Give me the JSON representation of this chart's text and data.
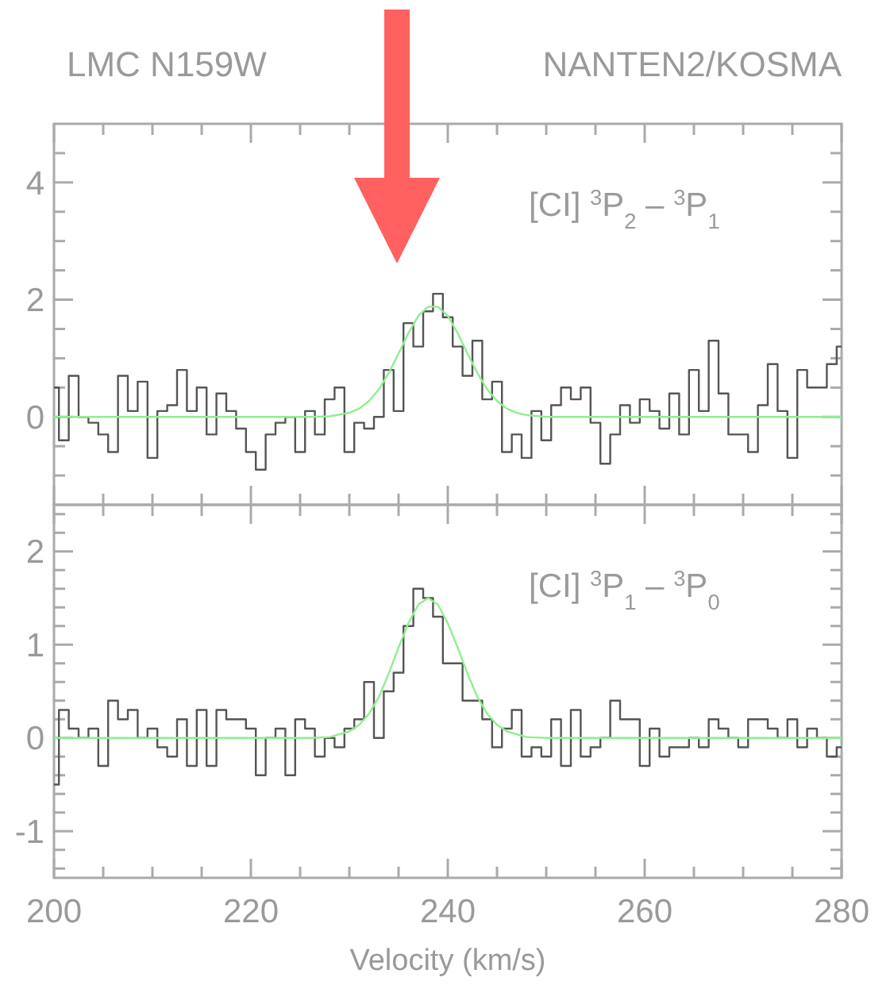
{
  "chart_data": [
    {
      "type": "step",
      "title": "LMC N159W",
      "subtitle": "NANTEN2/KOSMA",
      "annotations": [
        "[CI] $^{3}$P$_{2}$ – $^{3}$P$_{1}$"
      ],
      "tick_labels": "y",
      "xlim": [
        200,
        280
      ],
      "xticks": [
        {
          "value": 200,
          "label": null
        },
        {
          "value": 205,
          "label": null
        },
        {
          "value": 210,
          "label": null
        },
        {
          "value": 215,
          "label": null
        },
        {
          "value": 220,
          "label": null
        },
        {
          "value": 225,
          "label": null
        },
        {
          "value": 230,
          "label": null
        },
        {
          "value": 235,
          "label": null
        },
        {
          "value": 240,
          "label": null
        },
        {
          "value": 245,
          "label": null
        },
        {
          "value": 250,
          "label": null
        },
        {
          "value": 255,
          "label": null
        },
        {
          "value": 260,
          "label": null
        },
        {
          "value": 265,
          "label": null
        },
        {
          "value": 270,
          "label": null
        },
        {
          "value": 275,
          "label": null
        },
        {
          "value": 280,
          "label": null
        }
      ],
      "ylim": [
        -1.5,
        5
      ],
      "yticks": [
        {
          "value": -1,
          "label": null
        },
        {
          "value": -0.5,
          "label": null
        },
        0,
        {
          "value": 0.5,
          "label": null
        },
        {
          "value": 1,
          "label": null
        },
        {
          "value": 1.5,
          "label": null
        },
        2,
        {
          "value": 2.5,
          "label": null
        },
        {
          "value": 3,
          "label": null
        },
        {
          "value": 3.5,
          "label": null
        },
        4,
        {
          "value": 4.5,
          "label": null
        }
      ],
      "x": [
        200,
        201,
        202,
        203,
        204,
        205,
        206,
        207,
        208,
        209,
        210,
        211,
        212,
        213,
        214,
        215,
        216,
        217,
        218,
        219,
        220,
        221,
        222,
        223,
        224,
        225,
        226,
        227,
        228,
        229,
        230,
        231,
        232,
        233,
        234,
        235,
        236,
        237,
        238,
        239,
        240,
        241,
        242,
        243,
        244,
        245,
        246,
        247,
        248,
        249,
        250,
        251,
        252,
        253,
        254,
        255,
        256,
        257,
        258,
        259,
        260,
        261,
        262,
        263,
        264,
        265,
        266,
        267,
        268,
        269,
        270,
        271,
        272,
        273,
        274,
        275,
        276,
        277,
        278,
        279,
        280
      ],
      "series": [
        {
          "color": "#555555",
          "values": [
            0.5,
            -0.4,
            0.7,
            0.0,
            -0.1,
            -0.3,
            -0.6,
            0.7,
            0.1,
            0.6,
            -0.7,
            0.1,
            0.2,
            0.8,
            0.1,
            0.5,
            -0.3,
            0.4,
            0.1,
            -0.2,
            -0.6,
            -0.9,
            -0.3,
            -0.1,
            0.0,
            -0.6,
            0.1,
            -0.3,
            0.3,
            0.5,
            -0.6,
            -0.1,
            -0.2,
            0.0,
            0.8,
            0.1,
            1.6,
            1.2,
            1.8,
            2.1,
            1.7,
            1.2,
            0.7,
            1.3,
            0.3,
            0.6,
            -0.6,
            -0.3,
            -0.7,
            0.1,
            -0.4,
            0.2,
            0.5,
            0.3,
            0.5,
            -0.1,
            -0.8,
            -0.3,
            0.2,
            -0.1,
            0.3,
            0.1,
            -0.2,
            0.4,
            -0.3,
            0.8,
            0.1,
            1.3,
            0.4,
            -0.3,
            -0.3,
            -0.6,
            0.2,
            0.9,
            0.1,
            -0.7,
            0.8,
            0.5,
            0.5,
            0.9,
            1.2
          ]
        },
        {
          "type": "line",
          "color": "#90ee90",
          "x": [
            200,
            226,
            228,
            230,
            231,
            232,
            233,
            234,
            235,
            236,
            237,
            238,
            239,
            240,
            241,
            242,
            243,
            244,
            245,
            246,
            247,
            248,
            250,
            280
          ],
          "values": [
            0,
            0,
            0.01,
            0.07,
            0.14,
            0.27,
            0.47,
            0.75,
            1.08,
            1.43,
            1.72,
            1.88,
            1.88,
            1.72,
            1.43,
            1.08,
            0.75,
            0.47,
            0.27,
            0.14,
            0.07,
            0.03,
            0,
            0
          ]
        }
      ]
    },
    {
      "type": "step",
      "annotations": [
        "[CI] $^{3}$P$_{1}$ – $^{3}$P$_{0}$"
      ],
      "xlabel": "Velocity (km/s)",
      "xlim": [
        200,
        280
      ],
      "xticks": [
        200,
        {
          "value": 205,
          "label": null
        },
        {
          "value": 210,
          "label": null
        },
        {
          "value": 215,
          "label": null
        },
        220,
        {
          "value": 225,
          "label": null
        },
        {
          "value": 230,
          "label": null
        },
        {
          "value": 235,
          "label": null
        },
        240,
        {
          "value": 245,
          "label": null
        },
        {
          "value": 250,
          "label": null
        },
        {
          "value": 255,
          "label": null
        },
        260,
        {
          "value": 265,
          "label": null
        },
        {
          "value": 270,
          "label": null
        },
        {
          "value": 275,
          "label": null
        },
        280
      ],
      "ylim": [
        -1.5,
        2.5
      ],
      "yticks": [
        {
          "value": -1.4,
          "label": null
        },
        {
          "value": -1.2,
          "label": null
        },
        -1,
        {
          "value": -0.8,
          "label": null
        },
        {
          "value": -0.6,
          "label": null
        },
        {
          "value": -0.4,
          "label": null
        },
        {
          "value": -0.2,
          "label": null
        },
        0,
        {
          "value": 0.2,
          "label": null
        },
        {
          "value": 0.4,
          "label": null
        },
        {
          "value": 0.6,
          "label": null
        },
        {
          "value": 0.8,
          "label": null
        },
        1,
        {
          "value": 1.2,
          "label": null
        },
        {
          "value": 1.4,
          "label": null
        },
        {
          "value": 1.6,
          "label": null
        },
        {
          "value": 1.8,
          "label": null
        },
        2,
        {
          "value": 2.2,
          "label": null
        },
        {
          "value": 2.4,
          "label": null
        }
      ],
      "x": [
        200,
        201,
        202,
        203,
        204,
        205,
        206,
        207,
        208,
        209,
        210,
        211,
        212,
        213,
        214,
        215,
        216,
        217,
        218,
        219,
        220,
        221,
        222,
        223,
        224,
        225,
        226,
        227,
        228,
        229,
        230,
        231,
        232,
        233,
        234,
        235,
        236,
        237,
        238,
        239,
        240,
        241,
        242,
        243,
        244,
        245,
        246,
        247,
        248,
        249,
        250,
        251,
        252,
        253,
        254,
        255,
        256,
        257,
        258,
        259,
        260,
        261,
        262,
        263,
        264,
        265,
        266,
        267,
        268,
        269,
        270,
        271,
        272,
        273,
        274,
        275,
        276,
        277,
        278,
        279,
        280
      ],
      "series": [
        {
          "color": "#555555",
          "values": [
            -0.5,
            0.3,
            0.1,
            0.0,
            0.1,
            -0.3,
            0.4,
            0.2,
            0.3,
            0.0,
            0.1,
            -0.1,
            -0.2,
            0.2,
            -0.3,
            0.3,
            -0.3,
            0.3,
            0.2,
            0.2,
            0.1,
            -0.4,
            0.0,
            0.1,
            -0.4,
            0.2,
            0.1,
            -0.2,
            0.0,
            -0.1,
            0.1,
            0.2,
            0.6,
            0.0,
            0.5,
            0.7,
            1.2,
            1.6,
            1.5,
            1.3,
            0.8,
            0.8,
            0.4,
            0.4,
            0.2,
            -0.1,
            0.1,
            0.3,
            -0.2,
            -0.1,
            -0.2,
            0.2,
            -0.3,
            0.3,
            -0.2,
            -0.1,
            0.0,
            0.4,
            0.2,
            0.2,
            -0.3,
            0.1,
            -0.2,
            -0.1,
            -0.1,
            0.0,
            -0.1,
            0.2,
            0.1,
            0.0,
            -0.1,
            0.2,
            0.2,
            0.1,
            0.0,
            0.2,
            -0.1,
            0.1,
            0.0,
            -0.2,
            -0.1
          ]
        },
        {
          "type": "line",
          "color": "#90ee90",
          "x": [
            200,
            226,
            228,
            230,
            231,
            232,
            233,
            234,
            235,
            236,
            237,
            238,
            239,
            240,
            241,
            242,
            243,
            244,
            245,
            246,
            248,
            250,
            280
          ],
          "values": [
            0,
            0,
            0.01,
            0.07,
            0.14,
            0.26,
            0.44,
            0.69,
            0.97,
            1.23,
            1.43,
            1.5,
            1.43,
            1.23,
            0.97,
            0.69,
            0.44,
            0.26,
            0.14,
            0.07,
            0.01,
            0,
            0
          ]
        }
      ]
    }
  ]
}
